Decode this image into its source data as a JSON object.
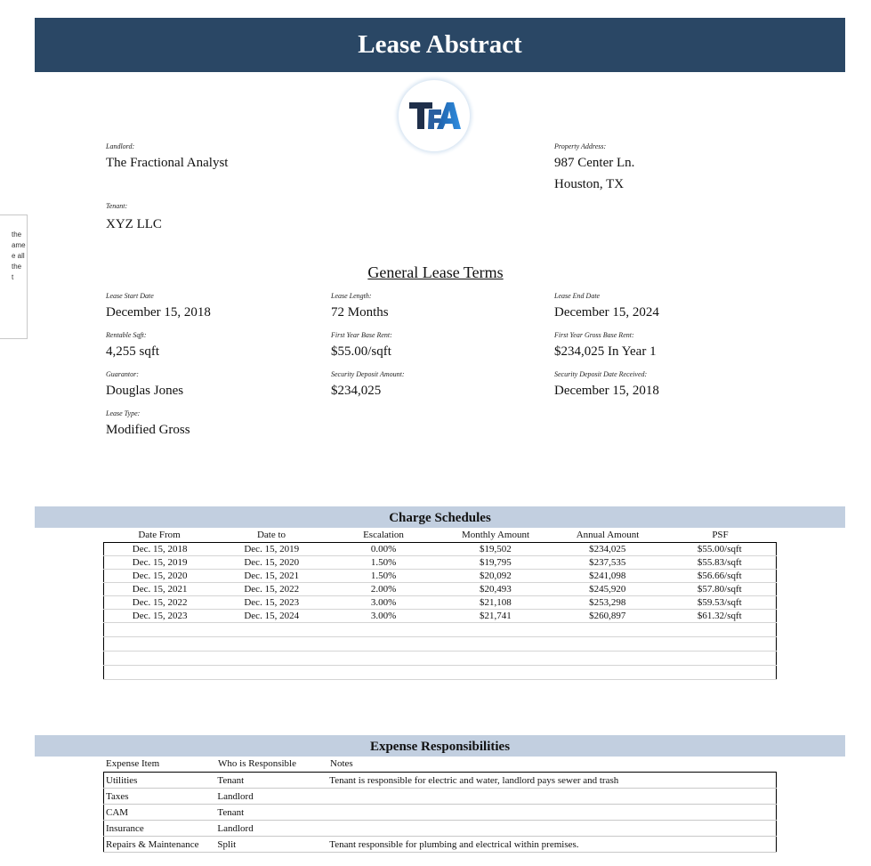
{
  "title": "Lease Abstract",
  "logo": {
    "text": "TFA",
    "colors": [
      "#1f2f4a",
      "#2a7fd0"
    ]
  },
  "side_comment": {
    "lines": [
      "the",
      "ame",
      "e all",
      "the",
      "t"
    ]
  },
  "parties": {
    "landlord": {
      "label": "Landlord:",
      "value": "The Fractional Analyst"
    },
    "tenant": {
      "label": "Tenant:",
      "value": "XYZ LLC"
    },
    "property": {
      "label": "Property Address:",
      "line1": "987 Center Ln.",
      "line2": "Houston, TX"
    }
  },
  "general_terms": {
    "heading": "General Lease Terms",
    "fields": [
      {
        "label": "Lease Start Date",
        "value": "December 15, 2018"
      },
      {
        "label": "Lease Length:",
        "value": "72 Months"
      },
      {
        "label": "Lease End Date",
        "value": "December 15, 2024"
      },
      {
        "label": "Rentable Sqft:",
        "value": "4,255 sqft"
      },
      {
        "label": "First Year Base Rent:",
        "value": "$55.00/sqft"
      },
      {
        "label": "First Year Gross Base Rent:",
        "value": "$234,025 In Year 1"
      },
      {
        "label": "Guarantor:",
        "value": "Douglas Jones"
      },
      {
        "label": "Security Deposit Amount:",
        "value": "$234,025"
      },
      {
        "label": "Security Deposit Date Received:",
        "value": "December 15, 2018"
      },
      {
        "label": "Lease Type:",
        "value": "Modified Gross"
      }
    ]
  },
  "charge_schedules": {
    "heading": "Charge Schedules",
    "columns": [
      "Date From",
      "Date to",
      "Escalation",
      "Monthly Amount",
      "Annual Amount",
      "PSF"
    ],
    "rows": [
      [
        "Dec. 15, 2018",
        "Dec. 15, 2019",
        "0.00%",
        "$19,502",
        "$234,025",
        "$55.00/sqft"
      ],
      [
        "Dec. 15, 2019",
        "Dec. 15, 2020",
        "1.50%",
        "$19,795",
        "$237,535",
        "$55.83/sqft"
      ],
      [
        "Dec. 15, 2020",
        "Dec. 15, 2021",
        "1.50%",
        "$20,092",
        "$241,098",
        "$56.66/sqft"
      ],
      [
        "Dec. 15, 2021",
        "Dec. 15, 2022",
        "2.00%",
        "$20,493",
        "$245,920",
        "$57.80/sqft"
      ],
      [
        "Dec. 15, 2022",
        "Dec. 15, 2023",
        "3.00%",
        "$21,108",
        "$253,298",
        "$59.53/sqft"
      ],
      [
        "Dec. 15, 2023",
        "Dec. 15, 2024",
        "3.00%",
        "$21,741",
        "$260,897",
        "$61.32/sqft"
      ]
    ]
  },
  "expenses": {
    "heading": "Expense Responsibilities",
    "columns": [
      "Expense Item",
      "Who is Responsible",
      "Notes"
    ],
    "rows": [
      [
        "Utilities",
        "Tenant",
        "Tenant is responsible for electric and water, landlord pays sewer and trash"
      ],
      [
        "Taxes",
        "Landlord",
        ""
      ],
      [
        "CAM",
        "Tenant",
        ""
      ],
      [
        "Insurance",
        "Landlord",
        ""
      ],
      [
        "Repairs & Maintenance",
        "Split",
        "Tenant responsible for plumbing and electrical within premises."
      ]
    ]
  }
}
